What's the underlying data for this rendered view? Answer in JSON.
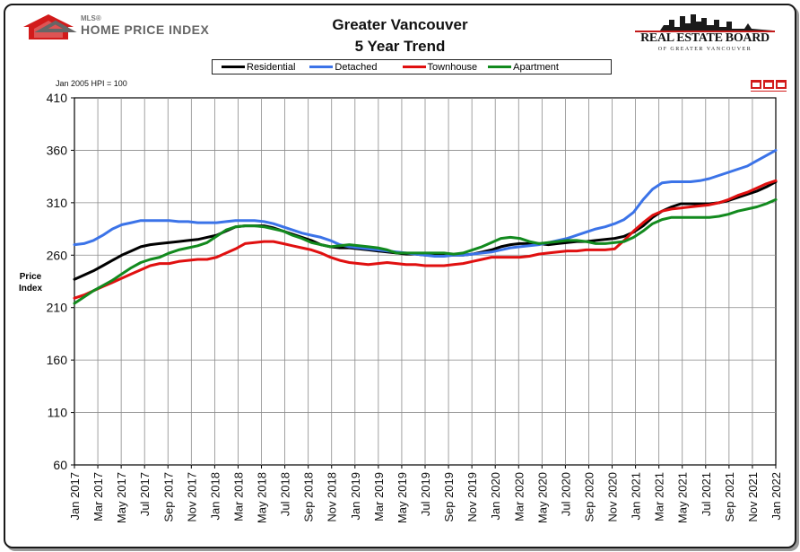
{
  "header": {
    "hpi_small": "MLS®",
    "hpi_big": "HOME PRICE INDEX",
    "title_line1": "Greater Vancouver",
    "title_line2": "5 Year Trend",
    "board_name": "REAL ESTATE BOARD",
    "board_sub": "OF GREATER VANCOUVER"
  },
  "note": "Jan 2005 HPI = 100",
  "colors": {
    "Residential": "#000000",
    "Detached": "#3b73e8",
    "Townhouse": "#e01010",
    "Apartment": "#128a1e"
  },
  "chart_data": {
    "type": "line",
    "title": "Greater Vancouver 5 Year Trend",
    "xlabel": "",
    "ylabel": "Price Index",
    "ylim": [
      60,
      410
    ],
    "yticks": [
      60,
      110,
      160,
      210,
      260,
      310,
      360,
      410
    ],
    "grid": true,
    "legend_position": "top",
    "x_tick_labels": [
      "Jan 2017",
      "Mar 2017",
      "May 2017",
      "Jul 2017",
      "Sep 2017",
      "Nov 2017",
      "Jan 2018",
      "Mar 2018",
      "May 2018",
      "Jul 2018",
      "Sep 2018",
      "Nov 2018",
      "Jan 2019",
      "Mar 2019",
      "May 2019",
      "Jul 2019",
      "Sep 2019",
      "Nov 2019",
      "Jan 2020",
      "Mar 2020",
      "May 2020",
      "Jul 2020",
      "Sep 2020",
      "Nov 2020",
      "Jan 2021",
      "Mar 2021",
      "May 2021",
      "Jul 2021",
      "Sep 2021",
      "Nov 2021",
      "Jan 2022"
    ],
    "series": [
      {
        "name": "Residential",
        "values": [
          237,
          241,
          245,
          250,
          255,
          260,
          264,
          268,
          270,
          271,
          272,
          273,
          274,
          275,
          277,
          279,
          283,
          287,
          288,
          288,
          288,
          286,
          283,
          280,
          277,
          274,
          270,
          268,
          267,
          267,
          266,
          265,
          264,
          263,
          262,
          261,
          261,
          260,
          260,
          260,
          260,
          260,
          261,
          263,
          265,
          268,
          270,
          271,
          271,
          271,
          270,
          271,
          272,
          273,
          273,
          274,
          275,
          276,
          278,
          282,
          288,
          296,
          302,
          306,
          309,
          309,
          309,
          309,
          310,
          312,
          315,
          318,
          321,
          325,
          330
        ]
      },
      {
        "name": "Detached",
        "values": [
          270,
          271,
          274,
          279,
          285,
          289,
          291,
          293,
          293,
          293,
          293,
          292,
          292,
          291,
          291,
          291,
          292,
          293,
          293,
          293,
          292,
          290,
          287,
          284,
          281,
          279,
          277,
          274,
          270,
          268,
          267,
          266,
          265,
          264,
          263,
          262,
          261,
          260,
          259,
          259,
          260,
          260,
          261,
          262,
          263,
          265,
          267,
          268,
          269,
          270,
          272,
          274,
          276,
          279,
          282,
          285,
          287,
          290,
          294,
          301,
          313,
          323,
          329,
          330,
          330,
          330,
          331,
          333,
          336,
          339,
          342,
          345,
          350,
          355,
          360
        ]
      },
      {
        "name": "Townhouse",
        "values": [
          219,
          222,
          226,
          230,
          234,
          238,
          242,
          246,
          250,
          252,
          252,
          254,
          255,
          256,
          256,
          258,
          262,
          266,
          271,
          272,
          273,
          273,
          271,
          269,
          267,
          265,
          262,
          258,
          255,
          253,
          252,
          251,
          252,
          253,
          252,
          251,
          251,
          250,
          250,
          250,
          251,
          252,
          254,
          256,
          258,
          258,
          258,
          258,
          259,
          261,
          262,
          263,
          264,
          264,
          265,
          265,
          265,
          266,
          274,
          283,
          291,
          298,
          302,
          304,
          305,
          306,
          307,
          308,
          310,
          313,
          317,
          320,
          324,
          328,
          331
        ]
      },
      {
        "name": "Apartment",
        "values": [
          214,
          220,
          226,
          231,
          236,
          242,
          248,
          253,
          256,
          258,
          262,
          265,
          267,
          269,
          272,
          278,
          284,
          287,
          288,
          288,
          287,
          285,
          283,
          279,
          276,
          272,
          270,
          268,
          269,
          270,
          269,
          268,
          267,
          265,
          262,
          262,
          262,
          262,
          262,
          262,
          261,
          262,
          265,
          268,
          272,
          276,
          277,
          276,
          273,
          271,
          272,
          273,
          274,
          274,
          273,
          271,
          271,
          272,
          273,
          277,
          283,
          290,
          294,
          296,
          296,
          296,
          296,
          296,
          297,
          299,
          302,
          304,
          306,
          309,
          313
        ]
      }
    ]
  }
}
